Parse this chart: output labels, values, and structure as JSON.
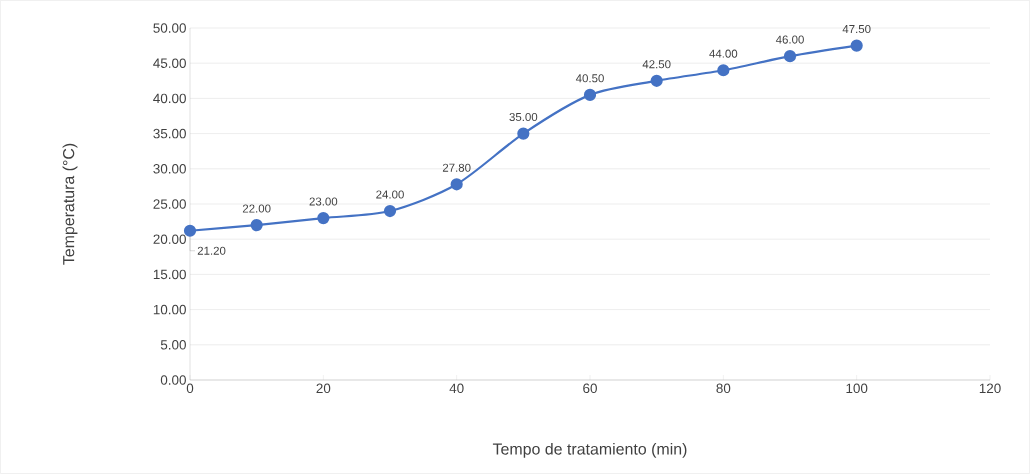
{
  "chart_data": {
    "type": "line",
    "xlabel": "Tempo de tratamiento (min)",
    "ylabel": "Temperatura (°C)",
    "x": [
      0,
      10,
      20,
      30,
      40,
      50,
      60,
      70,
      80,
      90,
      100
    ],
    "series": [
      {
        "color": "#4472c4",
        "values": [
          21.2,
          22,
          23,
          24,
          27.8,
          35,
          40.5,
          42.5,
          44,
          46,
          47.5
        ],
        "value_labels": [
          "21.20",
          "22.00",
          "23.00",
          "24.00",
          "27.80",
          "35.00",
          "40.50",
          "42.50",
          "44.00",
          "46.00",
          "47.50"
        ]
      }
    ],
    "xlim": [
      0,
      120
    ],
    "ylim": [
      0,
      50
    ],
    "xticks": [
      0,
      20,
      40,
      60,
      80,
      100,
      120
    ],
    "yticks": [
      {
        "value": 0,
        "label": "0.00"
      },
      {
        "value": 5,
        "label": "5.00"
      },
      {
        "value": 10,
        "label": "10.00"
      },
      {
        "value": 15,
        "label": "15.00"
      },
      {
        "value": 20,
        "label": "20.00"
      },
      {
        "value": 25,
        "label": "25.00"
      },
      {
        "value": 30,
        "label": "30.00"
      },
      {
        "value": 35,
        "label": "35.00"
      },
      {
        "value": 40,
        "label": "40.00"
      },
      {
        "value": 45,
        "label": "45.00"
      },
      {
        "value": 50,
        "label": "50.00"
      }
    ],
    "grid": "y",
    "marker": "circle",
    "line_style": "solid"
  }
}
